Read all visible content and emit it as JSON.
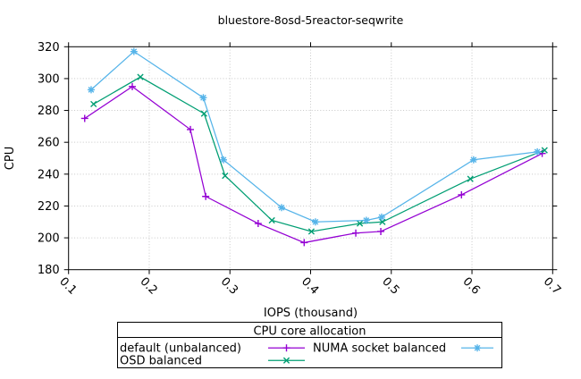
{
  "chart_data": {
    "type": "line",
    "title": "bluestore-8osd-5reactor-seqwrite",
    "xlabel": "IOPS (thousand)",
    "ylabel": "CPU",
    "xlim": [
      0.1,
      0.7
    ],
    "ylim": [
      180,
      320
    ],
    "xticks": [
      0.1,
      0.2,
      0.3,
      0.4,
      0.5,
      0.6,
      0.7
    ],
    "yticks": [
      180,
      200,
      220,
      240,
      260,
      280,
      300,
      320
    ],
    "grid": true,
    "grid_color": "#c8c8c8",
    "border_color": "#000000",
    "legend": {
      "title": "CPU core allocation",
      "position": "bottom-outside",
      "columns": 2
    },
    "series": [
      {
        "name": "default (unbalanced)",
        "color": "#9400d3",
        "marker": "plus",
        "x": [
          0.12,
          0.179,
          0.251,
          0.27,
          0.335,
          0.392,
          0.456,
          0.487,
          0.587,
          0.687
        ],
        "y": [
          275,
          295,
          268,
          226,
          209,
          197,
          203,
          204,
          227,
          253
        ]
      },
      {
        "name": "OSD balanced",
        "color": "#009e73",
        "marker": "cross",
        "x": [
          0.131,
          0.189,
          0.268,
          0.294,
          0.352,
          0.401,
          0.461,
          0.489,
          0.598,
          0.69
        ],
        "y": [
          284,
          301,
          278,
          239,
          211,
          204,
          209,
          210,
          237,
          255
        ]
      },
      {
        "name": "NUMA socket balanced",
        "color": "#56b4e9",
        "marker": "asterisk",
        "x": [
          0.128,
          0.181,
          0.267,
          0.292,
          0.364,
          0.406,
          0.469,
          0.488,
          0.602,
          0.681
        ],
        "y": [
          293,
          317,
          288,
          249,
          219,
          210,
          211,
          213,
          249,
          254
        ]
      }
    ]
  }
}
